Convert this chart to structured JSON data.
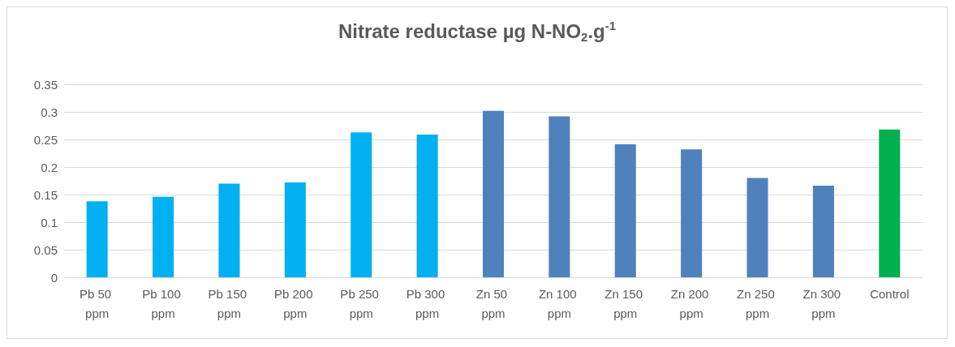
{
  "chart_data": {
    "type": "bar",
    "title": "Nitrate reductase µg N-NO$_{2}$.g$^{-1}$",
    "categories": [
      "Pb 50 ppm",
      "Pb 100 ppm",
      "Pb 150 ppm",
      "Pb 200 ppm",
      "Pb 250 ppm",
      "Pb 300 ppm",
      "Zn 50 ppm",
      "Zn 100 ppm",
      "Zn 150 ppm",
      "Zn 200 ppm",
      "Zn 250 ppm",
      "Zn 300 ppm",
      "Control"
    ],
    "values": [
      0.138,
      0.146,
      0.17,
      0.172,
      0.263,
      0.259,
      0.302,
      0.292,
      0.241,
      0.232,
      0.18,
      0.166,
      0.268
    ],
    "colors": [
      "#00b0f0",
      "#00b0f0",
      "#00b0f0",
      "#00b0f0",
      "#00b0f0",
      "#00b0f0",
      "#4f81bd",
      "#4f81bd",
      "#4f81bd",
      "#4f81bd",
      "#4f81bd",
      "#4f81bd",
      "#00b050"
    ],
    "ylim": [
      0,
      0.35
    ],
    "yticks": [
      0,
      0.05,
      0.1,
      0.15,
      0.2,
      0.25,
      0.3,
      0.35
    ],
    "grid": "y"
  }
}
